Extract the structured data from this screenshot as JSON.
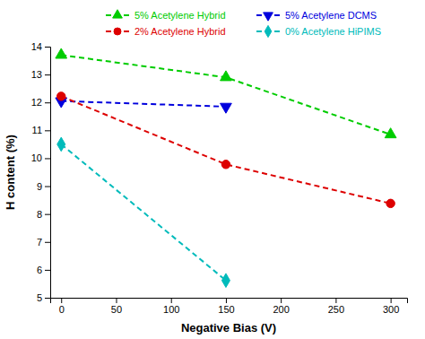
{
  "chart_data": {
    "type": "line",
    "x_label": "Negative Bias (V)",
    "y_label": "H content (%)",
    "series": [
      {
        "name": "5% Acetylene Hybrid",
        "x": [
          0,
          150,
          300
        ],
        "values": [
          13.7,
          12.9,
          10.85
        ],
        "color": "#00cc00",
        "marker": "triangle-up",
        "line_style": "dashed"
      },
      {
        "name": "5% Acetylene DCMS",
        "x": [
          0,
          150
        ],
        "values": [
          12.05,
          11.85
        ],
        "color": "#0000dd",
        "marker": "triangle-down",
        "line_style": "dashed"
      },
      {
        "name": "2% Acetylene Hybrid",
        "x": [
          0,
          150,
          300
        ],
        "values": [
          12.22,
          9.78,
          8.38
        ],
        "color": "#dd0000",
        "marker": "circle",
        "line_style": "dashed"
      },
      {
        "name": "0% Acetylene HiPIMS",
        "x": [
          0,
          150
        ],
        "values": [
          10.5,
          5.62
        ],
        "color": "#00bbbb",
        "marker": "diamond",
        "line_style": "dashed"
      }
    ],
    "xlim": [
      -10,
      315
    ],
    "ylim": [
      5,
      14
    ],
    "xticks": [
      0,
      50,
      100,
      150,
      200,
      250,
      300
    ],
    "yticks": [
      5,
      6,
      7,
      8,
      9,
      10,
      11,
      12,
      13,
      14
    ],
    "grid": false,
    "legend": "upper right"
  }
}
